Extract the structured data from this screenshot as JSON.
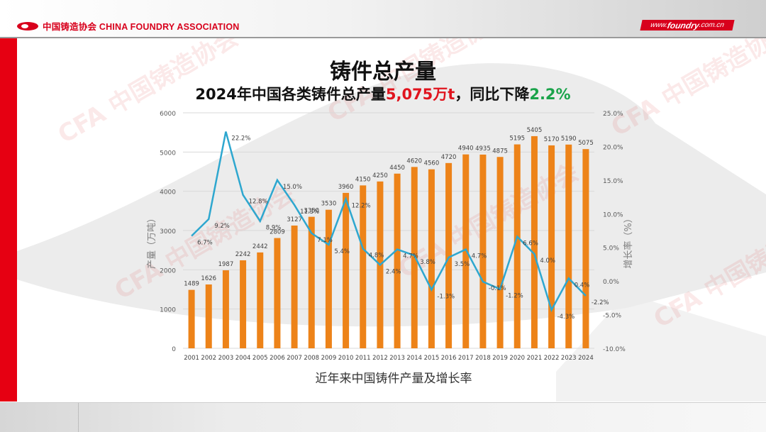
{
  "header": {
    "org_name": "中国铸造协会 CHINA FOUNDRY ASSOCIATION",
    "site_prefix": "www.",
    "site_main": "foundry",
    "site_suffix": ".com.cn"
  },
  "title": "铸件总产量",
  "subtitle": {
    "part1": "2024年中国各类铸件总产量",
    "value": "5,075万t",
    "part2": "，同比下降",
    "change": "2.2%"
  },
  "caption": "近年来中国铸件产量及增长率",
  "colors": {
    "bar": "#ed8319",
    "line": "#2ea7cf",
    "red_accent": "#e60012",
    "value_red": "#e0141e",
    "change_green": "#1aa34a"
  },
  "chart_data": {
    "type": "bar",
    "title": "近年来中国铸件产量及增长率",
    "categories": [
      "2001",
      "2002",
      "2003",
      "2004",
      "2005",
      "2006",
      "2007",
      "2008",
      "2009",
      "2010",
      "2011",
      "2012",
      "2013",
      "2014",
      "2015",
      "2016",
      "2017",
      "2018",
      "2019",
      "2020",
      "2021",
      "2022",
      "2023",
      "2024"
    ],
    "series": [
      {
        "name": "产量（万吨）",
        "type": "bar",
        "axis": "left",
        "values": [
          1489,
          1626,
          1987,
          2242,
          2442,
          2809,
          3127,
          3350,
          3530,
          3960,
          4150,
          4250,
          4450,
          4620,
          4560,
          4720,
          4940,
          4935,
          4875,
          5195,
          5405,
          5170,
          5190,
          5075
        ]
      },
      {
        "name": "增长率（%）",
        "type": "line",
        "axis": "right",
        "values": [
          6.7,
          9.2,
          22.2,
          12.8,
          8.9,
          15.0,
          11.3,
          7.1,
          5.4,
          12.2,
          4.8,
          2.4,
          4.7,
          3.8,
          -1.3,
          3.5,
          4.7,
          -0.1,
          -1.2,
          6.6,
          4.0,
          -4.3,
          0.4,
          -2.2
        ],
        "labels": [
          "6.7%",
          "9.2%",
          "22.2%",
          "12.8%",
          "8.9%",
          "15.0%",
          "11.3%",
          "7.1%",
          "5.4%",
          "12.2%",
          "4.8%",
          "2.4%",
          "4.7%",
          "3.8%",
          "-1.3%",
          "3.5%",
          "4.7%",
          "-0.1%",
          "-1.2%",
          "6.6%",
          "4.0%",
          "-4.3%",
          "0.4%",
          "-2.2%"
        ]
      }
    ],
    "ylabel": "产量（万吨）",
    "y2label": "增长率（%）",
    "ylim": [
      0,
      6000
    ],
    "y2lim": [
      -10,
      25
    ],
    "yticks": [
      "0",
      "1000",
      "2000",
      "3000",
      "4000",
      "5000",
      "6000"
    ],
    "y2ticks": [
      "-10.0%",
      "-5.0%",
      "0.0%",
      "5.0%",
      "10.0%",
      "15.0%",
      "20.0%",
      "25.0%"
    ],
    "grid": true,
    "legend": "none"
  }
}
